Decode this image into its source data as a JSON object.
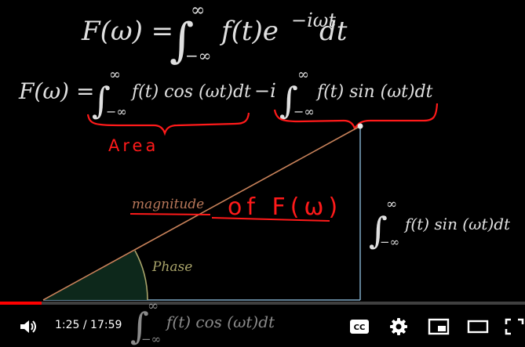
{
  "formulas": {
    "main_lhs": "F(ω) =",
    "main_rhs": "f(t)e",
    "main_exp": "−iωt",
    "main_dt": "dt",
    "line2_lhs": "F(ω) =",
    "line2_cos": "f(t) cos (ωt)dt",
    "line2_minus_i": "−i",
    "line2_sin": "f(t) sin (ωt)dt",
    "right_sin": "f(t) sin (ωt)dt",
    "bottom_cos": "f(t) cos (ωt)dt",
    "upper_limit": "∞",
    "lower_limit": "−∞"
  },
  "labels": {
    "area": "Area",
    "magnitude": "magnitude",
    "of_F": "of F(ω)",
    "phase": "Phase"
  },
  "player": {
    "time_display": "1:25 / 17:59",
    "progress": 0.079
  },
  "colors": {
    "annotation_red": "#ff1a1a",
    "hypotenuse": "#c8825a",
    "vertical_side": "#7fa7c4",
    "phase_arc": "#a9a46a",
    "magnitude_label": "#b9785a"
  },
  "icons": [
    "volume-icon",
    "captions-icon",
    "settings-gear-icon",
    "miniplayer-icon",
    "theater-mode-icon",
    "fullscreen-icon"
  ]
}
